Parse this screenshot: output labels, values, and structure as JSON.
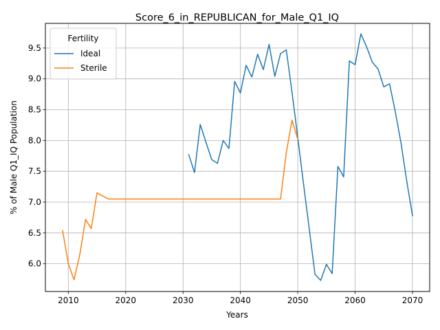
{
  "chart_data": {
    "type": "line",
    "title": "Score_6_in_REPUBLICAN_for_Male_Q1_IQ",
    "xlabel": "Years",
    "ylabel": "% of Male Q1_IQ Population",
    "xlim": [
      2006,
      2073
    ],
    "ylim": [
      5.55,
      9.9
    ],
    "xticks": [
      2010,
      2020,
      2030,
      2040,
      2050,
      2060,
      2070
    ],
    "yticks": [
      6.0,
      6.5,
      7.0,
      7.5,
      8.0,
      8.5,
      9.0,
      9.5
    ],
    "grid": true,
    "legend": {
      "title": "Fertility",
      "placement": "top-left"
    },
    "series": [
      {
        "name": "Ideal",
        "color": "#1f77b4",
        "x": [
          2031,
          2032,
          2033,
          2034,
          2035,
          2036,
          2037,
          2038,
          2039,
          2040,
          2041,
          2042,
          2043,
          2044,
          2045,
          2046,
          2047,
          2048,
          2049,
          2050,
          2051,
          2052,
          2053,
          2054,
          2055,
          2056,
          2057,
          2058,
          2059,
          2060,
          2061,
          2062,
          2063,
          2064,
          2065,
          2066,
          2067,
          2068,
          2069,
          2070
        ],
        "y": [
          7.77,
          7.48,
          8.26,
          7.97,
          7.69,
          7.63,
          8.0,
          7.87,
          8.96,
          8.77,
          9.22,
          9.03,
          9.4,
          9.15,
          9.56,
          9.04,
          9.41,
          9.47,
          8.78,
          8.05,
          7.3,
          6.57,
          5.83,
          5.73,
          5.99,
          5.84,
          7.58,
          7.41,
          9.29,
          9.23,
          9.73,
          9.52,
          9.27,
          9.16,
          8.87,
          8.92,
          8.47,
          7.96,
          7.34,
          6.78
        ]
      },
      {
        "name": "Sterile",
        "color": "#ff7f0e",
        "x": [
          2009,
          2010,
          2011,
          2012,
          2013,
          2014,
          2015,
          2016,
          2017,
          2018,
          2019,
          2020,
          2021,
          2022,
          2023,
          2024,
          2025,
          2026,
          2027,
          2028,
          2029,
          2030,
          2031,
          2032,
          2033,
          2034,
          2035,
          2036,
          2037,
          2038,
          2039,
          2040,
          2041,
          2042,
          2043,
          2044,
          2045,
          2046,
          2047,
          2048,
          2049,
          2050
        ],
        "y": [
          6.54,
          6.0,
          5.74,
          6.15,
          6.72,
          6.57,
          7.15,
          7.1,
          7.05,
          7.05,
          7.05,
          7.05,
          7.05,
          7.05,
          7.05,
          7.05,
          7.05,
          7.05,
          7.05,
          7.05,
          7.05,
          7.05,
          7.05,
          7.05,
          7.05,
          7.05,
          7.05,
          7.05,
          7.05,
          7.05,
          7.05,
          7.05,
          7.05,
          7.05,
          7.05,
          7.05,
          7.05,
          7.05,
          7.05,
          7.8,
          8.33,
          8.02
        ]
      }
    ]
  }
}
